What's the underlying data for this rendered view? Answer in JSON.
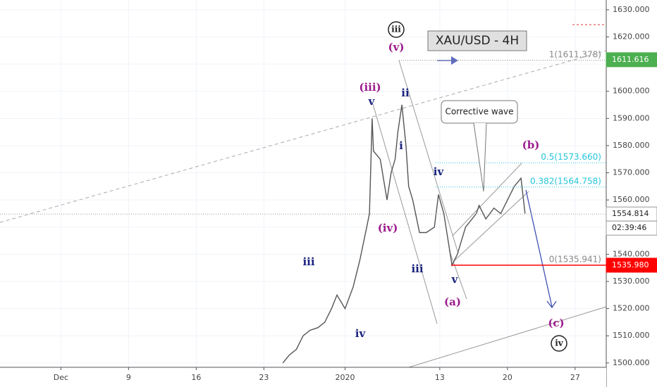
{
  "chart_data": {
    "type": "line",
    "title": "XAU/USD - 4H",
    "color": "#555555",
    "grid": true,
    "x": [
      16.4,
      16.9,
      17.4,
      17.9,
      18.4,
      19.0,
      19.5,
      20.0,
      20.4,
      21.0,
      21.6,
      22.1,
      22.6,
      22.8,
      23.0,
      23.1,
      23.6,
      24.1,
      24.4,
      24.7,
      24.9,
      25.2,
      25.5,
      25.7,
      26.0,
      26.5,
      27.0,
      27.6,
      27.9,
      28.3,
      28.9,
      29.3,
      29.9,
      30.7,
      30.9,
      31.4,
      32.0,
      32.5,
      33.0,
      33.5,
      34.0,
      34.3
    ],
    "values": [
      1500,
      1503,
      1505,
      1510,
      1512,
      1513,
      1515,
      1520,
      1525,
      1520,
      1528,
      1538,
      1550,
      1555,
      1590,
      1578,
      1575,
      1560,
      1570,
      1575,
      1585,
      1595,
      1580,
      1565,
      1560,
      1548,
      1548,
      1550,
      1562,
      1555,
      1536,
      1540,
      1550,
      1555,
      1558,
      1553,
      1557,
      1555,
      1560,
      1565,
      1568,
      1555
    ],
    "xlim": [
      -4.5,
      40.3
    ],
    "ylim": [
      1498.4,
      1633.6
    ],
    "xticks": [
      {
        "value": 0,
        "label": "Dec"
      },
      {
        "value": 5,
        "label": "9"
      },
      {
        "value": 10,
        "label": "16"
      },
      {
        "value": 15,
        "label": "23"
      },
      {
        "value": 21,
        "label": "2020"
      },
      {
        "value": 28,
        "label": "13"
      },
      {
        "value": 33,
        "label": "20"
      },
      {
        "value": 38,
        "label": "27"
      }
    ],
    "yticks": [
      {
        "value": 1500,
        "label": "1500.000"
      },
      {
        "value": 1510,
        "label": "1510.000"
      },
      {
        "value": 1520,
        "label": "1520.000"
      },
      {
        "value": 1530,
        "label": "1530.000"
      },
      {
        "value": 1540,
        "label": "1540.000"
      },
      {
        "value": 1550,
        "label": "1550.000"
      },
      {
        "value": 1560,
        "label": "1560.000"
      },
      {
        "value": 1570,
        "label": "1570.000"
      },
      {
        "value": 1580,
        "label": "1580.000"
      },
      {
        "value": 1590,
        "label": "1590.000"
      },
      {
        "value": 1600,
        "label": "1600.000"
      },
      {
        "value": 1610,
        "label": "1610.000"
      },
      {
        "value": 1620,
        "label": "1620.000"
      },
      {
        "value": 1630,
        "label": "1630.000"
      }
    ],
    "fib_levels": [
      {
        "value": 1611.378,
        "label": "1(1611.378)"
      },
      {
        "value": 1573.66,
        "label": "0.5(1573.660)"
      },
      {
        "value": 1564.758,
        "label": "0.382(1564.758)"
      },
      {
        "value": 1535.941,
        "label": "0(1535.941)"
      }
    ],
    "price_markers": [
      {
        "value": 1611.616,
        "label": "1611.616"
      },
      {
        "value": 1554.814,
        "label": "1554.814"
      },
      {
        "value": 1535.98,
        "label": "1535.980"
      }
    ],
    "countdown": "02:39:46",
    "callout": "Corrective wave",
    "wave_labels": [
      "iii",
      "(v)",
      "(iii)",
      "ii",
      "v",
      "i",
      "iv",
      "(iv)",
      "iii",
      "iii",
      "v",
      "(a)",
      "iv",
      "(b)",
      "(c)",
      "iv"
    ]
  }
}
